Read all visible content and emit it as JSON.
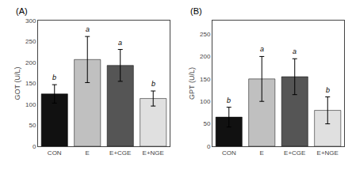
{
  "chart_data": [
    {
      "type": "bar",
      "title": "(A)",
      "ylabel": "GOT (U/L)",
      "categories": [
        "CON",
        "E",
        "E+CGE",
        "E+NGE"
      ],
      "values": [
        125,
        207,
        193,
        114
      ],
      "errors": [
        22,
        55,
        38,
        18
      ],
      "colors": [
        "#111111",
        "#c0c0c0",
        "#555555",
        "#e0e0e0"
      ],
      "letters": [
        "b",
        "a",
        "a",
        "b"
      ],
      "ylim": [
        0,
        300
      ],
      "yticks": [
        0,
        50,
        100,
        150,
        200,
        250,
        300
      ],
      "grid": false
    },
    {
      "type": "bar",
      "title": "(B)",
      "ylabel": "GPT (U/L)",
      "categories": [
        "CON",
        "E",
        "E+CGE",
        "E+NGE"
      ],
      "values": [
        65,
        150,
        155,
        80
      ],
      "errors": [
        22,
        50,
        40,
        30
      ],
      "colors": [
        "#111111",
        "#c0c0c0",
        "#555555",
        "#e0e0e0"
      ],
      "letters": [
        "b",
        "a",
        "a",
        "b"
      ],
      "ylim": [
        0,
        280
      ],
      "yticks": [
        0,
        50,
        100,
        150,
        200,
        250
      ],
      "grid": false
    }
  ]
}
